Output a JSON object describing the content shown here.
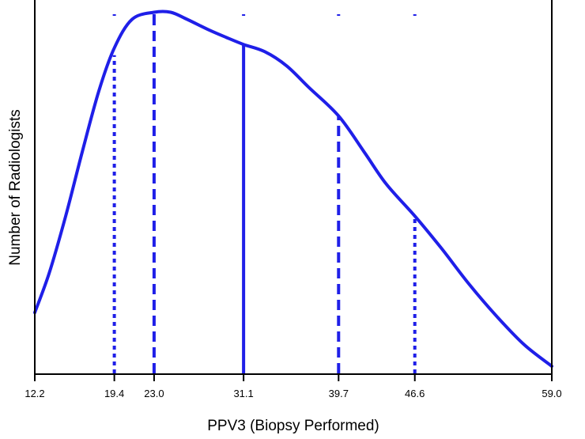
{
  "chart_data": {
    "type": "line",
    "title": "",
    "xlabel": "PPV3 (Biopsy Performed)",
    "ylabel": "Number of Radiologists",
    "xlim": [
      12.2,
      59.0
    ],
    "ylim": [
      0,
      100
    ],
    "grid": false,
    "legend": "none",
    "x_ticks": [
      "12.2",
      "19.4",
      "23.0",
      "31.1",
      "39.7",
      "46.6",
      "59.0"
    ],
    "series": [
      {
        "x": [
          12.2,
          13.5,
          15.0,
          16.5,
          18.0,
          19.4,
          21.0,
          23.0,
          24.5,
          26.0,
          28.0,
          29.5,
          31.1,
          33.0,
          35.0,
          37.0,
          39.7,
          42.0,
          44.0,
          46.6,
          49.0,
          51.5,
          54.0,
          56.5,
          59.0
        ],
        "y": [
          17,
          28,
          44,
          62,
          79,
          91,
          99,
          101,
          101,
          99,
          96,
          94,
          92,
          90,
          86,
          80,
          72,
          62,
          53,
          44,
          35,
          25,
          16,
          8,
          2
        ]
      }
    ],
    "reference_lines": [
      {
        "x": 19.4,
        "y": 89,
        "style": "dotted"
      },
      {
        "x": 23.0,
        "y": 100,
        "style": "dashed"
      },
      {
        "x": 31.1,
        "y": 92,
        "style": "solid"
      },
      {
        "x": 39.7,
        "y": 72,
        "style": "dashed"
      },
      {
        "x": 46.6,
        "y": 44,
        "style": "dotted"
      }
    ],
    "colors": {
      "line": "#1f1fe8",
      "axis": "#000000"
    }
  }
}
